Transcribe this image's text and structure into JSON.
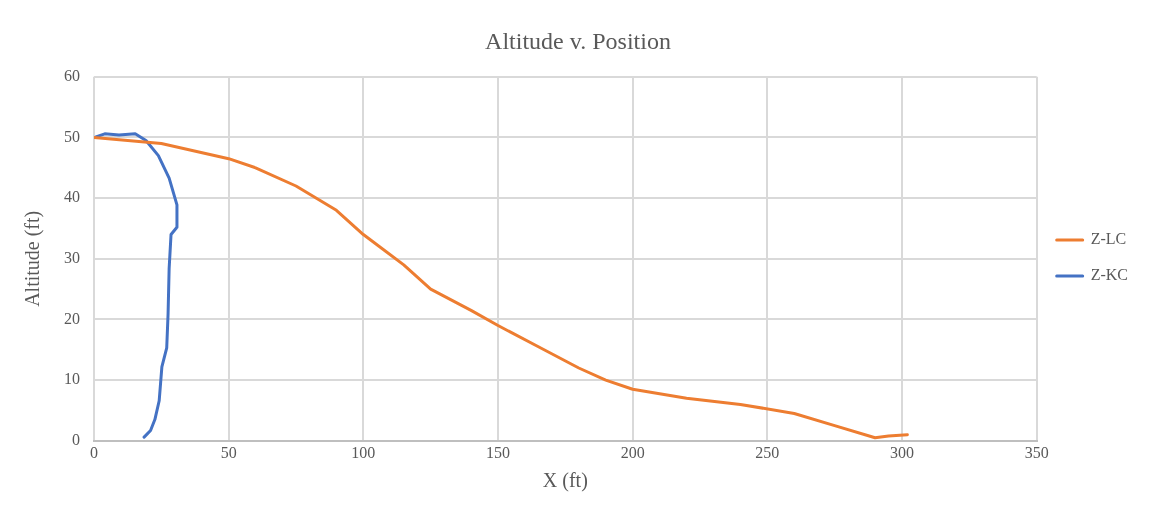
{
  "chart_data": {
    "type": "line",
    "title": "Altitude v. Position",
    "xlabel": "X (ft)",
    "ylabel": "Altitude (ft)",
    "xlim": [
      0,
      350
    ],
    "xticks": [
      0,
      50,
      100,
      150,
      200,
      250,
      300,
      350
    ],
    "ylim": [
      0,
      60
    ],
    "yticks": [
      0,
      10,
      20,
      30,
      40,
      50,
      60
    ],
    "grid": true,
    "legend": "right",
    "marker": "none",
    "line_style": "solid",
    "series": [
      {
        "name": "Z-LC",
        "color": "#ed7d31",
        "x": [
          0,
          25,
          50,
          60,
          75,
          90,
          100,
          115,
          125,
          140,
          150,
          165,
          180,
          190,
          200,
          220,
          240,
          260,
          275,
          290,
          295,
          302
        ],
        "values": [
          50,
          49,
          46.5,
          45,
          42,
          38,
          34,
          29,
          25,
          21.5,
          19,
          15.5,
          12,
          10,
          8.5,
          7,
          6,
          4.5,
          2.5,
          0.5,
          0.8,
          1
        ]
      },
      {
        "name": "Z-KC",
        "color": "#4472c4",
        "x": [
          0.7,
          4,
          9.3,
          15.3,
          19.3,
          23.9,
          27.9,
          30.8,
          30.8,
          28.6,
          27.9,
          27.5,
          27,
          25.2,
          24.2,
          22.6,
          21,
          18.6
        ],
        "values": [
          50.1,
          50.6,
          50.4,
          50.6,
          49.5,
          47,
          43.3,
          38.9,
          35.2,
          34,
          28.4,
          20.9,
          15.3,
          12.2,
          6.6,
          3.5,
          1.7,
          0.6
        ]
      }
    ]
  }
}
